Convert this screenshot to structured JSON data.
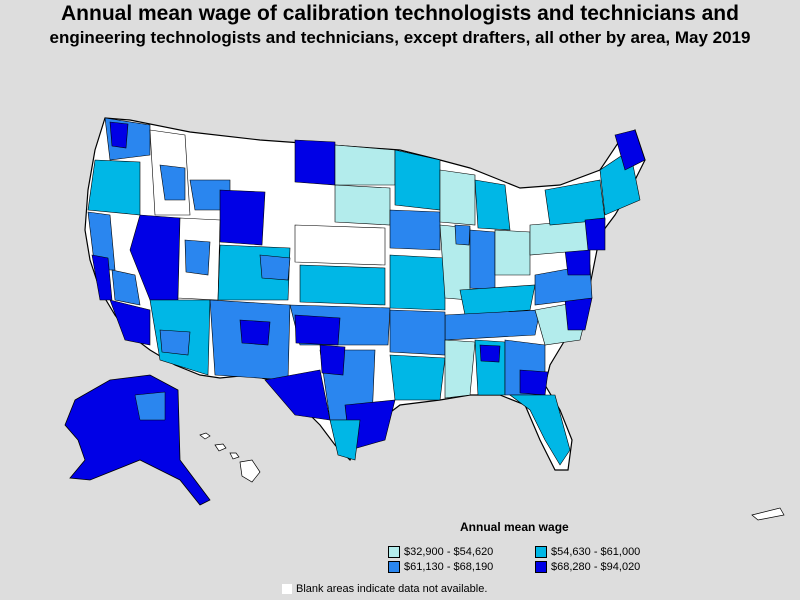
{
  "title_line1": "Annual mean wage of calibration technologists and technicians and",
  "title_line2": "engineering technologists and technicians, except drafters, all other by area, May 2019",
  "legend": {
    "title": "Annual mean wage",
    "items": [
      {
        "label": "$32,900 - $54,620",
        "color": "#b3ecec"
      },
      {
        "label": "$54,630 - $61,000",
        "color": "#00b7e6"
      },
      {
        "label": "$61,130 - $68,190",
        "color": "#2a86ef"
      },
      {
        "label": "$68,280 - $94,020",
        "color": "#0000e6"
      }
    ]
  },
  "blank_note": "Blank areas indicate data not available.",
  "colors": {
    "background": "#dddddd",
    "no_data": "#ffffff",
    "border": "#000000"
  }
}
